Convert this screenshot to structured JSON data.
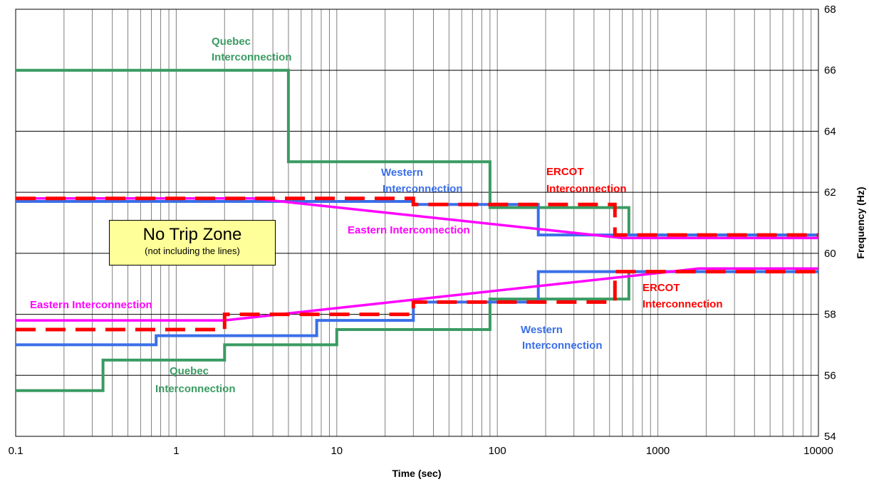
{
  "chart_data": {
    "type": "line",
    "title": "",
    "xlabel": "Time (sec)",
    "ylabel": "Frequency (Hz)",
    "x_scale": "log",
    "xlim": [
      0.1,
      10000
    ],
    "ylim": [
      54,
      68
    ],
    "x_ticks": [
      "0.1",
      "1",
      "10",
      "100",
      "1000",
      "10000"
    ],
    "y_ticks": [
      "54",
      "56",
      "58",
      "60",
      "62",
      "64",
      "66",
      "68"
    ],
    "y_axis_side": "right",
    "grid": true,
    "legend": "none",
    "annotation": {
      "title": "No Trip Zone",
      "subtitle": "(not including the lines)"
    },
    "colors": {
      "quebec": "#3a9b62",
      "western": "#3a6fe8",
      "ercot": "#ff0000",
      "eastern": "#ff00ff",
      "grid": "#808080",
      "zone_box": "#ffff99"
    },
    "series": [
      {
        "id": "quebec_high",
        "group": "quebec",
        "labels": [
          "Quebec",
          "Interconnection"
        ],
        "x": [
          0.1,
          5,
          5,
          90,
          90,
          660,
          660,
          10000
        ],
        "y": [
          66,
          66,
          63,
          63,
          61.5,
          61.5,
          60.6,
          60.6
        ]
      },
      {
        "id": "quebec_low",
        "group": "quebec",
        "labels": [
          "Quebec",
          "Interconnection"
        ],
        "x": [
          0.1,
          0.35,
          0.35,
          2,
          2,
          10,
          10,
          90,
          90,
          660,
          660,
          10000
        ],
        "y": [
          55.5,
          55.5,
          56.5,
          56.5,
          57,
          57,
          57.5,
          57.5,
          58.5,
          58.5,
          59.4,
          59.4
        ]
      },
      {
        "id": "western_high",
        "group": "western",
        "labels": [
          "Western",
          "Interconnection"
        ],
        "x": [
          0.1,
          30,
          30,
          180,
          180,
          10000
        ],
        "y": [
          61.7,
          61.7,
          61.6,
          61.6,
          60.6,
          60.6
        ]
      },
      {
        "id": "western_low",
        "group": "western",
        "labels": [
          "Western",
          "Interconnection"
        ],
        "x": [
          0.1,
          0.75,
          0.75,
          7.5,
          7.5,
          30,
          30,
          180,
          180,
          10000
        ],
        "y": [
          57,
          57,
          57.3,
          57.3,
          57.8,
          57.8,
          58.4,
          58.4,
          59.4,
          59.4
        ]
      },
      {
        "id": "ercot_high",
        "group": "ercot",
        "labels": [
          "ERCOT",
          "Interconnection"
        ],
        "x": [
          0.1,
          30,
          30,
          540,
          540,
          10000
        ],
        "y": [
          61.8,
          61.8,
          61.6,
          61.6,
          60.6,
          60.6
        ]
      },
      {
        "id": "ercot_low",
        "group": "ercot",
        "labels": [
          "ERCOT",
          "Interconnection"
        ],
        "x": [
          0.1,
          2,
          2,
          30,
          30,
          540,
          540,
          10000
        ],
        "y": [
          57.5,
          57.5,
          58,
          58,
          58.4,
          58.4,
          59.4,
          59.4
        ]
      },
      {
        "id": "eastern_high",
        "group": "eastern",
        "labels": [
          "Eastern Interconnection"
        ],
        "x": [
          0.1,
          3,
          600,
          10000
        ],
        "y": [
          61.8,
          61.8,
          60.5,
          60.5
        ]
      },
      {
        "id": "eastern_low",
        "group": "eastern",
        "labels": [
          "Eastern Interconnection"
        ],
        "x": [
          0.1,
          2,
          1800,
          10000
        ],
        "y": [
          57.8,
          57.8,
          59.5,
          59.5
        ]
      }
    ]
  }
}
